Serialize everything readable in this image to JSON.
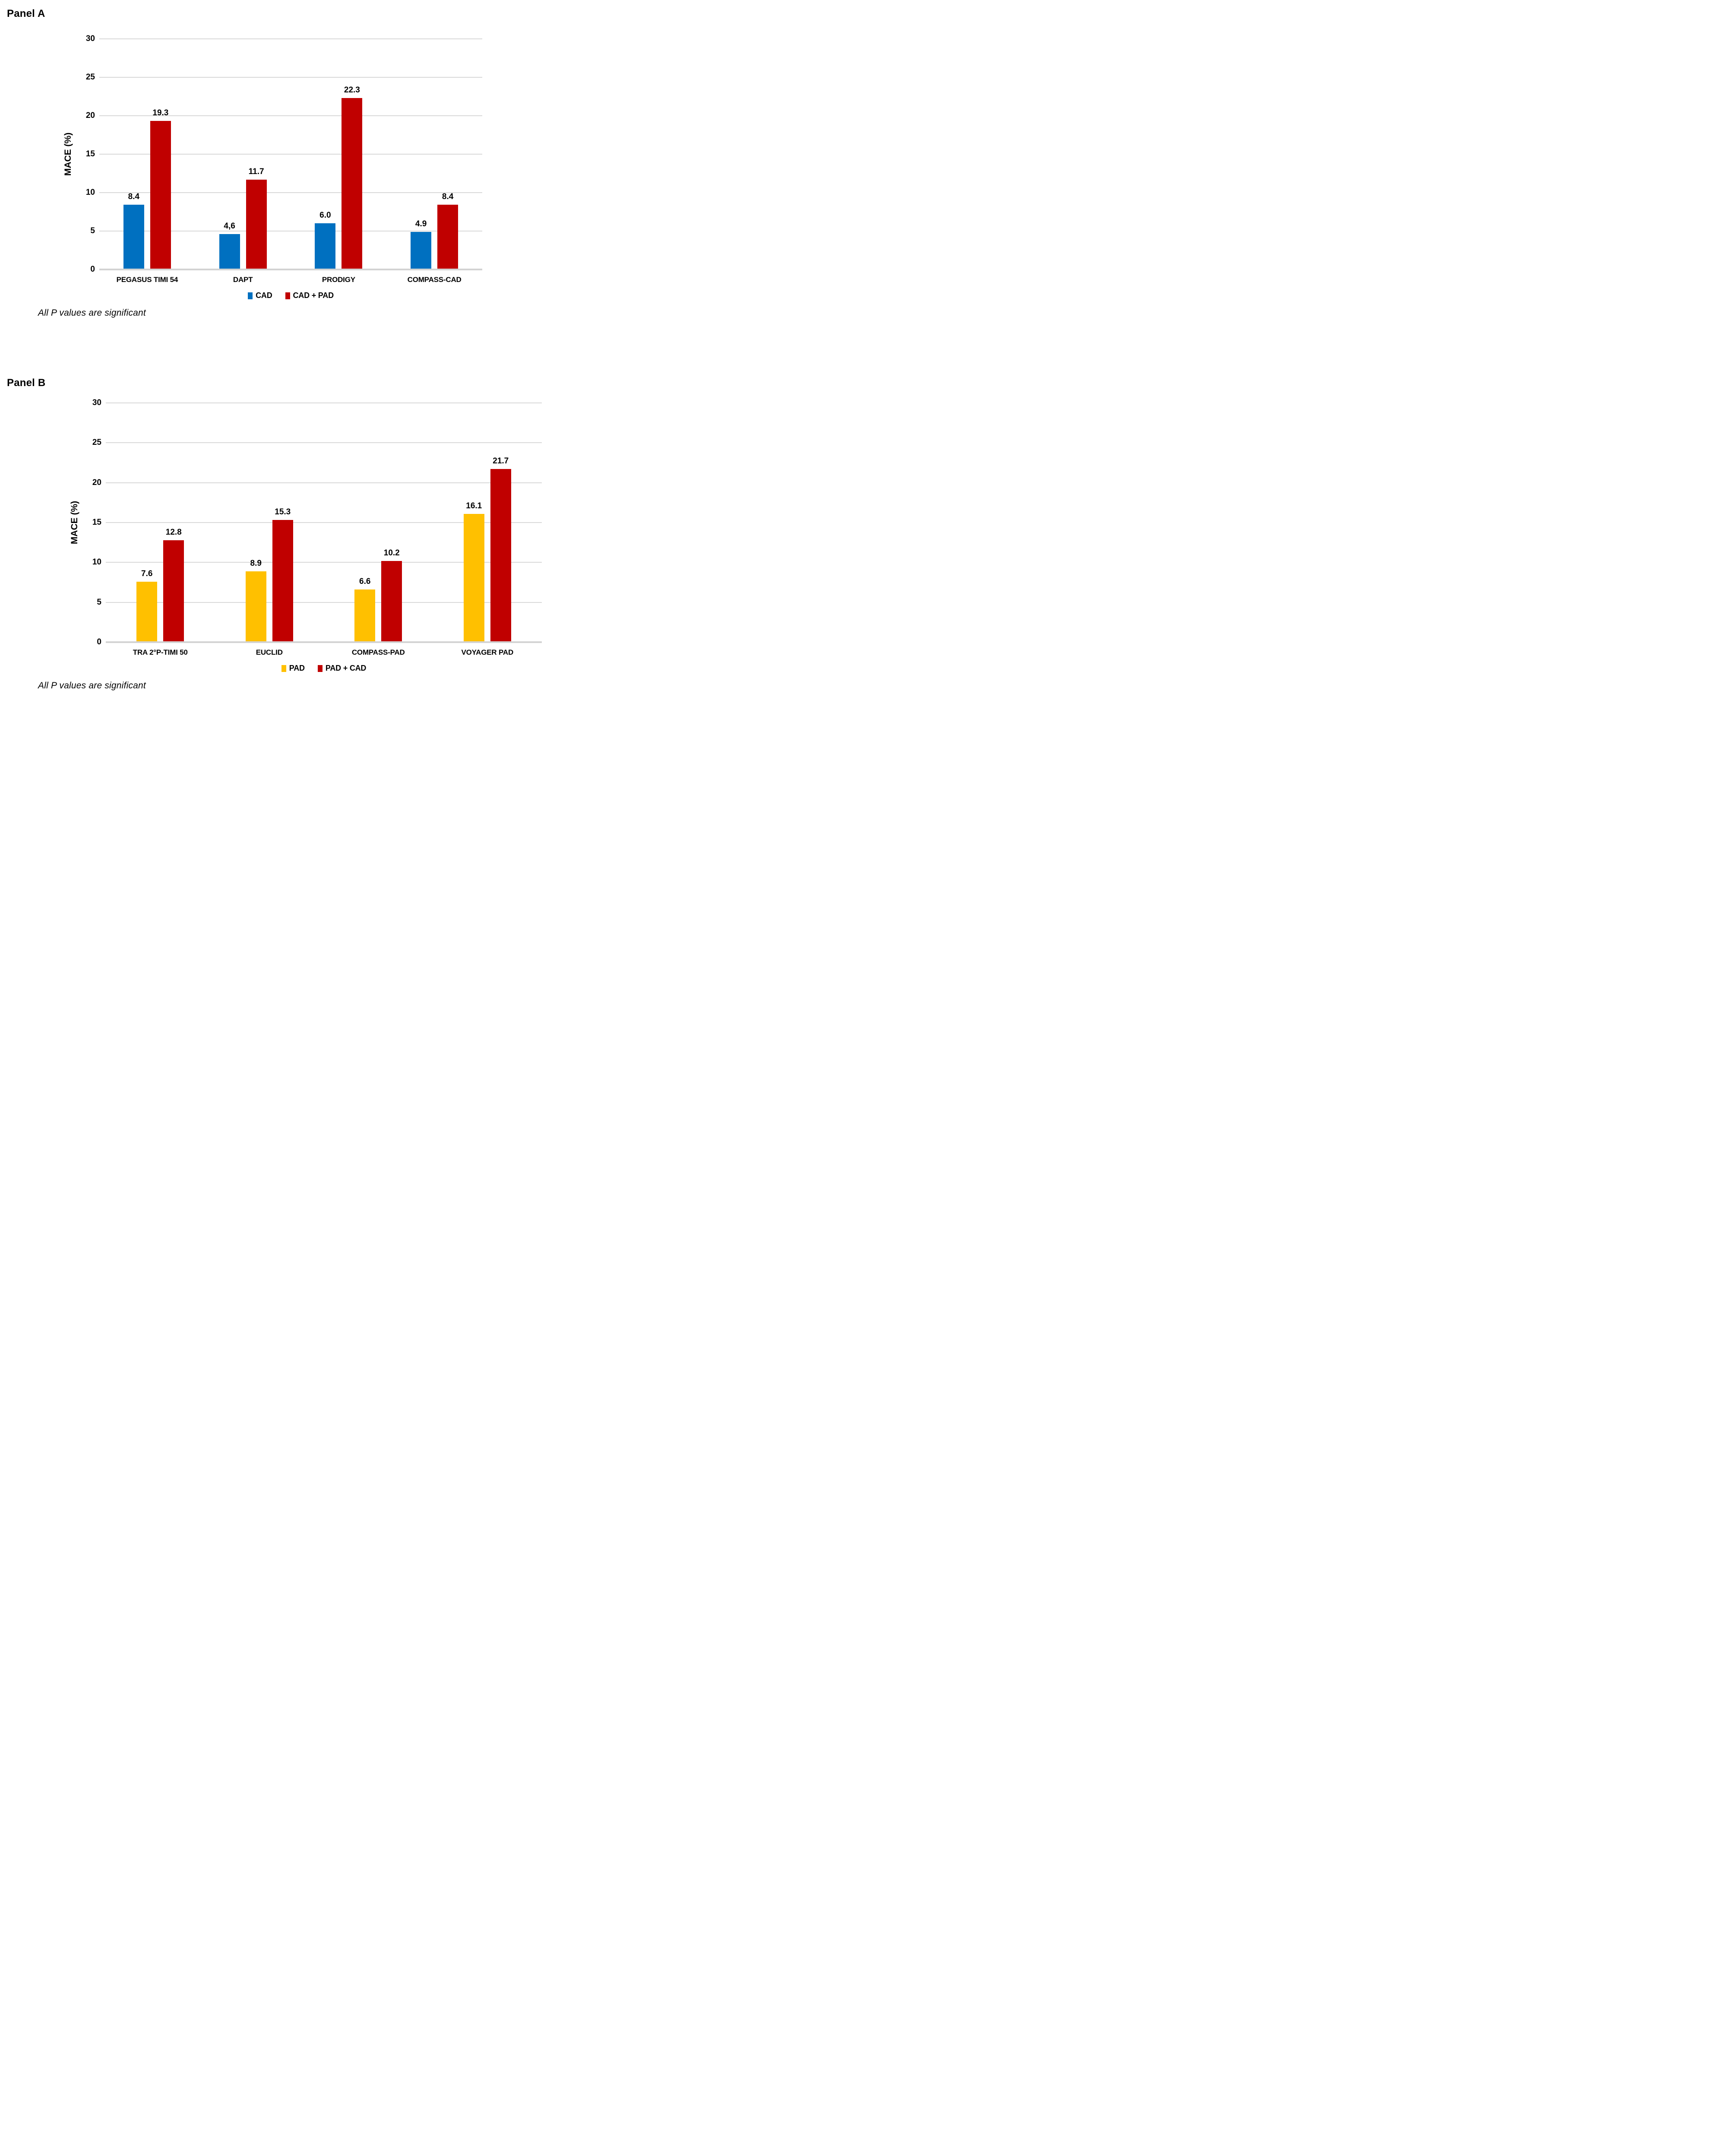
{
  "chart_data": [
    {
      "panel": "A",
      "title": "Panel A",
      "type": "bar",
      "categories": [
        "PEGASUS TIMI 54",
        "DAPT",
        "PRODIGY",
        "COMPASS-CAD"
      ],
      "series": [
        {
          "name": "CAD",
          "color": "#0070C0",
          "values": [
            8.4,
            4.6,
            6.0,
            4.9
          ],
          "labels": [
            "8.4",
            "4,6",
            "6.0",
            "4.9"
          ]
        },
        {
          "name": "CAD + PAD",
          "color": "#C00000",
          "values": [
            19.3,
            11.7,
            22.3,
            8.4
          ],
          "labels": [
            "19.3",
            "11.7",
            "22.3",
            "8.4"
          ]
        }
      ],
      "xlabel": "",
      "ylabel": "MACE (%)",
      "ylim": [
        0,
        30
      ],
      "yticks": [
        0,
        5,
        10,
        15,
        20,
        25,
        30
      ],
      "grid": true,
      "legend_position": "bottom",
      "note": "All P values are significant"
    },
    {
      "panel": "B",
      "title": "Panel B",
      "type": "bar",
      "categories": [
        "TRA 2°P-TIMI 50",
        "EUCLID",
        "COMPASS-PAD",
        "VOYAGER PAD"
      ],
      "series": [
        {
          "name": "PAD",
          "color": "#FFC000",
          "values": [
            7.6,
            8.9,
            6.6,
            16.1
          ],
          "labels": [
            "7.6",
            "8.9",
            "6.6",
            "16.1"
          ]
        },
        {
          "name": "PAD + CAD",
          "color": "#C00000",
          "values": [
            12.8,
            15.3,
            10.2,
            21.7
          ],
          "labels": [
            "12.8",
            "15.3",
            "10.2",
            "21.7"
          ]
        }
      ],
      "xlabel": "",
      "ylabel": "MACE (%)",
      "ylim": [
        0,
        30
      ],
      "yticks": [
        0,
        5,
        10,
        15,
        20,
        25,
        30
      ],
      "grid": true,
      "legend_position": "bottom",
      "note": "All P values are significant"
    }
  ],
  "colors": {
    "gridline": "#D9D9D9",
    "cad": "#0070C0",
    "pad": "#FFC000",
    "combined": "#C00000"
  }
}
